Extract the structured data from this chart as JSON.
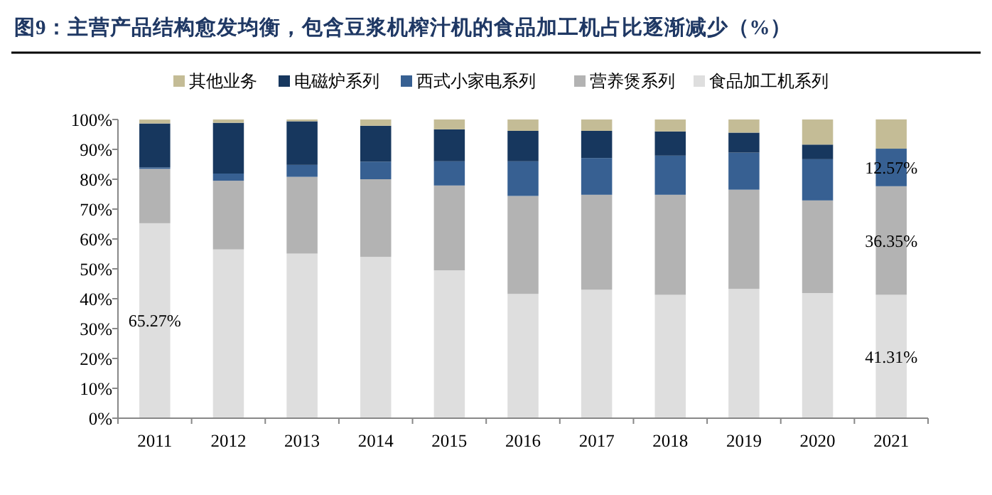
{
  "chart_data": {
    "type": "bar",
    "stacked": true,
    "title": "图9：主营产品结构愈发均衡，包含豆浆机榨汁机的食品加工机占比逐渐减少（%）",
    "categories": [
      "2011",
      "2012",
      "2013",
      "2014",
      "2015",
      "2016",
      "2017",
      "2018",
      "2019",
      "2020",
      "2021"
    ],
    "series": [
      {
        "name": "食品加工机系列",
        "color": "#dedede",
        "values": [
          65.27,
          56.5,
          55.1,
          54.0,
          49.5,
          41.6,
          43.0,
          41.3,
          43.3,
          41.9,
          41.31
        ],
        "value_labels": [
          "65.27%",
          null,
          null,
          null,
          null,
          null,
          null,
          null,
          null,
          null,
          "41.31%"
        ]
      },
      {
        "name": "营养煲系列",
        "color": "#b3b3b3",
        "values": [
          18.2,
          23.0,
          25.7,
          26.0,
          28.4,
          32.8,
          31.8,
          33.5,
          33.2,
          31.0,
          36.35
        ],
        "value_labels": [
          null,
          null,
          null,
          null,
          null,
          null,
          null,
          null,
          null,
          null,
          "36.35%"
        ]
      },
      {
        "name": "西式小家电系列",
        "color": "#376092",
        "values": [
          0.5,
          2.4,
          4.0,
          5.9,
          8.1,
          11.6,
          12.3,
          13.1,
          12.4,
          13.8,
          12.57
        ],
        "value_labels": [
          null,
          null,
          null,
          null,
          null,
          null,
          null,
          null,
          null,
          null,
          "12.57%"
        ]
      },
      {
        "name": "电磁炉系列",
        "color": "#17375e",
        "values": [
          14.7,
          17.0,
          14.6,
          12.0,
          10.7,
          10.2,
          9.1,
          8.1,
          6.7,
          4.9,
          0
        ]
      },
      {
        "name": "其他业务",
        "color": "#c4bc96",
        "values": [
          1.3,
          1.1,
          0.6,
          2.1,
          3.3,
          3.8,
          3.8,
          4.0,
          4.4,
          8.4,
          9.8
        ]
      }
    ],
    "ylim": [
      0,
      100
    ],
    "yticks": [
      {
        "value": 0,
        "label": "0%"
      },
      {
        "value": 10,
        "label": "10%"
      },
      {
        "value": 20,
        "label": "20%"
      },
      {
        "value": 30,
        "label": "30%"
      },
      {
        "value": 40,
        "label": "40%"
      },
      {
        "value": 50,
        "label": "50%"
      },
      {
        "value": 60,
        "label": "60%"
      },
      {
        "value": 70,
        "label": "70%"
      },
      {
        "value": 80,
        "label": "80%"
      },
      {
        "value": 90,
        "label": "90%"
      },
      {
        "value": 100,
        "label": "100%"
      }
    ],
    "grid": false,
    "legend": "top"
  }
}
